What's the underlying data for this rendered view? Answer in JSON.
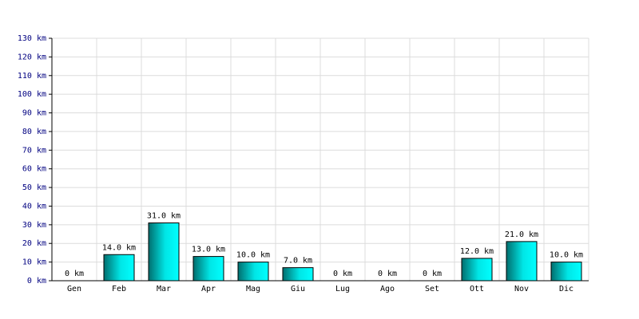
{
  "chart_data": {
    "type": "bar",
    "categories": [
      "Gen",
      "Feb",
      "Mar",
      "Apr",
      "Mag",
      "Giu",
      "Lug",
      "Ago",
      "Set",
      "Ott",
      "Nov",
      "Dic"
    ],
    "values": [
      0,
      14,
      31,
      13,
      10,
      7,
      0,
      0,
      0,
      12,
      21,
      10
    ],
    "value_labels": [
      "0 km",
      "14.0 km",
      "31.0 km",
      "13.0 km",
      "10.0 km",
      "7.0 km",
      "0 km",
      "0 km",
      "0 km",
      "12.0 km",
      "21.0 km",
      "10.0 km"
    ],
    "color": "#00c8c8",
    "ylim": [
      0,
      130
    ],
    "yticks": [
      {
        "value": 0,
        "label": "0 km"
      },
      {
        "value": 10,
        "label": "10 km"
      },
      {
        "value": 20,
        "label": "20 km"
      },
      {
        "value": 30,
        "label": "30 km"
      },
      {
        "value": 40,
        "label": "40 km"
      },
      {
        "value": 50,
        "label": "50 km"
      },
      {
        "value": 60,
        "label": "60 km"
      },
      {
        "value": 70,
        "label": "70 km"
      },
      {
        "value": 80,
        "label": "80 km"
      },
      {
        "value": 90,
        "label": "90 km"
      },
      {
        "value": 100,
        "label": "100 km"
      },
      {
        "value": 110,
        "label": "110 km"
      },
      {
        "value": 120,
        "label": "120 km"
      },
      {
        "value": 130,
        "label": "130 km"
      }
    ],
    "grid": true
  }
}
